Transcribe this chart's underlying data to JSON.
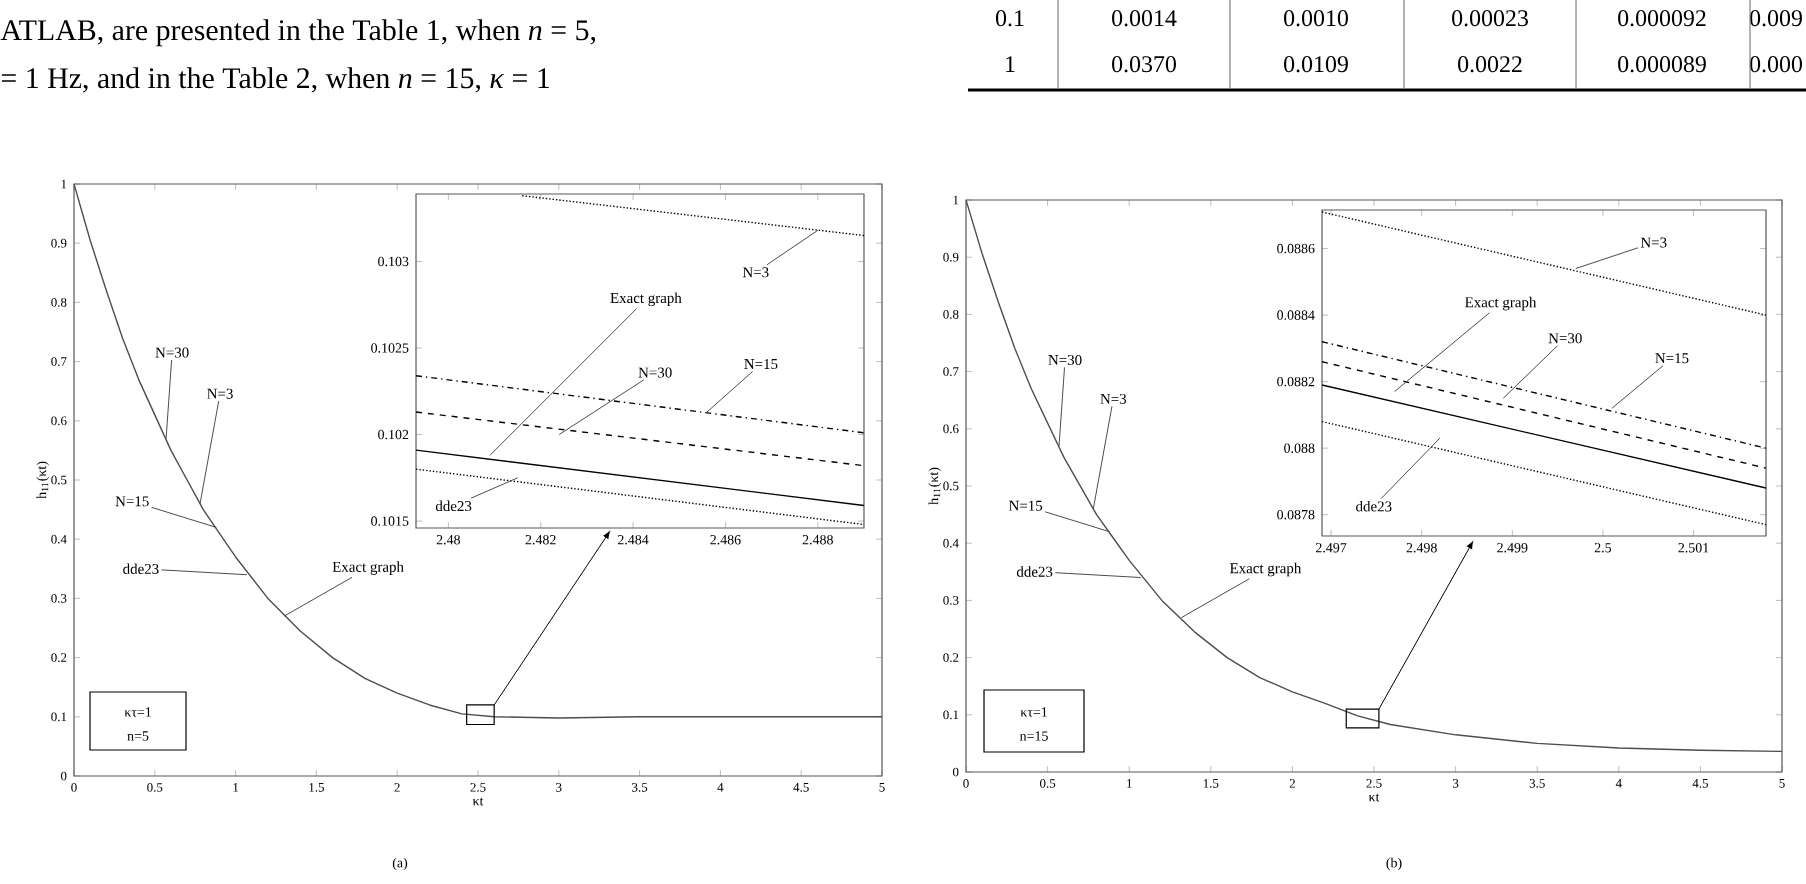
{
  "chart_data": [
    {
      "type": "other",
      "annotations": [
        "ATLAB, are presented in the Table 1, when *n* = 5,",
        "= 1 Hz, and in the Table 2, when *n* = 15, *κ* = 1",
        "0.1",
        "0.0014",
        "0.0010",
        "0.00023",
        "0.000092",
        "0.009",
        "1",
        "0.0370",
        "0.0109",
        "0.0022",
        "0.000089",
        "0.000"
      ]
    },
    {
      "type": "line",
      "xlabel": "κt",
      "ylabel": "h$_{11}$(κt)",
      "xlim": [
        0,
        5
      ],
      "ylim": [
        0,
        1
      ],
      "xticks": [
        0,
        0.5,
        1,
        1.5,
        2,
        2.5,
        3,
        3.5,
        4,
        4.5,
        5
      ],
      "yticks": [
        0,
        0.1,
        0.2,
        0.3,
        0.4,
        0.5,
        0.6,
        0.7,
        0.8,
        0.9,
        1
      ],
      "x": [
        0,
        0.1,
        0.2,
        0.3,
        0.4,
        0.5,
        0.6,
        0.7,
        0.8,
        0.9,
        1,
        1.2,
        1.4,
        1.6,
        1.8,
        2,
        2.2,
        2.4,
        2.6,
        3,
        3.5,
        4,
        4.5,
        5
      ],
      "series": [
        {
          "color": "#4d4d4d",
          "values": [
            1,
            0.905,
            0.82,
            0.74,
            0.67,
            0.61,
            0.55,
            0.5,
            0.45,
            0.41,
            0.37,
            0.3,
            0.245,
            0.2,
            0.165,
            0.14,
            0.12,
            0.105,
            0.1,
            0.098,
            0.1,
            0.1,
            0.1,
            0.1
          ]
        }
      ],
      "annotations": [
        {
          "text": "N=30",
          "x": 0.57,
          "y": 0.57
        },
        {
          "text": "N=3",
          "x": 0.78,
          "y": 0.46
        },
        {
          "text": "N=15",
          "x": 0.88,
          "y": 0.42
        },
        {
          "text": "dde23",
          "x": 1.07,
          "y": 0.34
        },
        {
          "text": "Exact graph",
          "x": 1.3,
          "y": 0.27
        },
        "κτ=1",
        "n=5",
        "(a)"
      ]
    },
    {
      "type": "line",
      "xlim": [
        2.4793,
        2.489
      ],
      "ylim": [
        0.10146,
        0.10339
      ],
      "xticks": [
        2.48,
        2.482,
        2.484,
        2.486,
        2.488
      ],
      "yticks": [
        0.1015,
        0.102,
        0.1025,
        0.103
      ],
      "series": [
        {
          "color": "#000000",
          "line_style": "dotted",
          "x": [
            2.4816,
            2.489
          ],
          "values": [
            0.10338,
            0.10315
          ]
        },
        {
          "color": "#000000",
          "line_style": "dashdot",
          "x": [
            2.4793,
            2.489
          ],
          "values": [
            0.10234,
            0.10201
          ]
        },
        {
          "color": "#000000",
          "line_style": "dashed",
          "x": [
            2.4793,
            2.489
          ],
          "values": [
            0.10213,
            0.10182
          ]
        },
        {
          "color": "#000000",
          "line_style": "solid",
          "x": [
            2.4793,
            2.489
          ],
          "values": [
            0.10191,
            0.10159
          ]
        },
        {
          "color": "#000000",
          "line_style": "dotted",
          "x": [
            2.4793,
            2.489
          ],
          "values": [
            0.1018,
            0.10148
          ]
        }
      ],
      "annotations": [
        {
          "text": "N=3",
          "x": 2.488,
          "y": 0.10318
        },
        {
          "text": "N=15",
          "x": 2.4856,
          "y": 0.10213
        },
        {
          "text": "N=30",
          "x": 2.4824,
          "y": 0.102
        },
        {
          "text": "Exact graph",
          "x": 2.4809,
          "y": 0.10188
        },
        {
          "text": "dde23",
          "x": 2.4815,
          "y": 0.10175
        }
      ]
    },
    {
      "type": "line",
      "xlabel": "κt",
      "ylabel": "h$_{11}$(κt)",
      "xlim": [
        0,
        5
      ],
      "ylim": [
        0,
        1
      ],
      "xticks": [
        0,
        0.5,
        1,
        1.5,
        2,
        2.5,
        3,
        3.5,
        4,
        4.5,
        5
      ],
      "yticks": [
        0,
        0.1,
        0.2,
        0.3,
        0.4,
        0.5,
        0.6,
        0.7,
        0.8,
        0.9,
        1
      ],
      "x": [
        0,
        0.1,
        0.2,
        0.3,
        0.4,
        0.5,
        0.6,
        0.7,
        0.8,
        0.9,
        1,
        1.2,
        1.4,
        1.6,
        1.8,
        2,
        2.2,
        2.4,
        2.6,
        3,
        3.5,
        4,
        4.5,
        5
      ],
      "series": [
        {
          "color": "#4d4d4d",
          "values": [
            1,
            0.905,
            0.82,
            0.74,
            0.67,
            0.61,
            0.55,
            0.5,
            0.45,
            0.41,
            0.37,
            0.3,
            0.245,
            0.2,
            0.165,
            0.14,
            0.12,
            0.098,
            0.083,
            0.065,
            0.05,
            0.042,
            0.038,
            0.036
          ]
        }
      ],
      "annotations": [
        {
          "text": "N=30",
          "x": 0.57,
          "y": 0.57
        },
        {
          "text": "N=3",
          "x": 0.78,
          "y": 0.46
        },
        {
          "text": "N=15",
          "x": 0.88,
          "y": 0.42
        },
        {
          "text": "dde23",
          "x": 1.07,
          "y": 0.34
        },
        {
          "text": "Exact graph",
          "x": 1.32,
          "y": 0.27
        },
        "κτ=1",
        "n=15",
        "(b)"
      ]
    },
    {
      "type": "line",
      "xlim": [
        2.4969,
        2.5018
      ],
      "ylim": [
        0.087736,
        0.088716
      ],
      "xticks": [
        2.497,
        2.498,
        2.499,
        2.5,
        2.501
      ],
      "yticks": [
        0.0878,
        0.088,
        0.0882,
        0.0884,
        0.0886
      ],
      "series": [
        {
          "color": "#000000",
          "line_style": "dotted",
          "x": [
            2.4969,
            2.5018
          ],
          "values": [
            0.08871,
            0.0884
          ]
        },
        {
          "color": "#000000",
          "line_style": "dashdot",
          "x": [
            2.4969,
            2.5018
          ],
          "values": [
            0.08832,
            0.088
          ]
        },
        {
          "color": "#000000",
          "line_style": "dashed",
          "x": [
            2.4969,
            2.5018
          ],
          "values": [
            0.08826,
            0.08794
          ]
        },
        {
          "color": "#000000",
          "line_style": "solid",
          "x": [
            2.4969,
            2.5018
          ],
          "values": [
            0.08819,
            0.08788
          ]
        },
        {
          "color": "#000000",
          "line_style": "dotted",
          "x": [
            2.4969,
            2.5018
          ],
          "values": [
            0.08808,
            0.08777
          ]
        }
      ],
      "annotations": [
        {
          "text": "N=3",
          "x": 2.4997,
          "y": 0.08854
        },
        {
          "text": "N=15",
          "x": 2.5001,
          "y": 0.08812
        },
        {
          "text": "N=30",
          "x": 2.4989,
          "y": 0.08815
        },
        {
          "text": "Exact graph",
          "x": 2.4977,
          "y": 0.08817
        },
        {
          "text": "dde23",
          "x": 2.4982,
          "y": 0.08803
        }
      ]
    }
  ]
}
